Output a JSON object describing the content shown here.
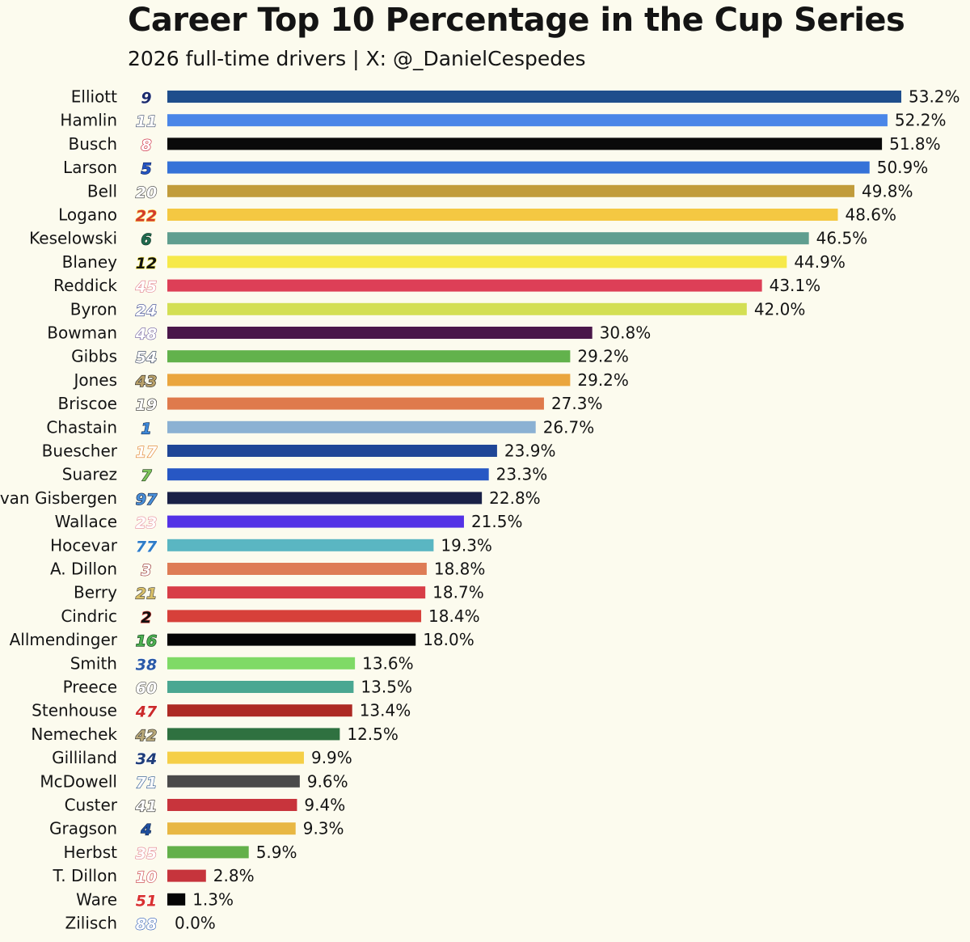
{
  "chart_data": {
    "type": "bar",
    "orientation": "horizontal",
    "title": "Career Top 10 Percentage in the Cup Series",
    "subtitle": "2026 full-time drivers | X: @_DanielCespedes",
    "xlabel": "",
    "ylabel": "",
    "xlim": [
      0,
      53.2
    ],
    "grid": false,
    "legend": "none",
    "value_suffix": "%",
    "bars": [
      {
        "driver": "Elliott",
        "number": "9",
        "value": 53.2,
        "label": "53.2%",
        "color": "#1f4e8c",
        "num_fill": "#1a2a6c",
        "num_stroke": "#ffffff"
      },
      {
        "driver": "Hamlin",
        "number": "11",
        "value": 52.2,
        "label": "52.2%",
        "color": "#4a86e8",
        "num_fill": "#ffffff",
        "num_stroke": "#3b4a6b"
      },
      {
        "driver": "Busch",
        "number": "8",
        "value": 51.8,
        "label": "51.8%",
        "color": "#0a0a0a",
        "num_fill": "#ffffff",
        "num_stroke": "#c8102e"
      },
      {
        "driver": "Larson",
        "number": "5",
        "value": 50.9,
        "label": "50.9%",
        "color": "#3572d8",
        "num_fill": "#2455c3",
        "num_stroke": "#0b1f5c"
      },
      {
        "driver": "Bell",
        "number": "20",
        "value": 49.8,
        "label": "49.8%",
        "color": "#c19c3b",
        "num_fill": "#ffffff",
        "num_stroke": "#3a3a3a"
      },
      {
        "driver": "Logano",
        "number": "22",
        "value": 48.6,
        "label": "48.6%",
        "color": "#f4c842",
        "num_fill": "#d23a2e",
        "num_stroke": "#ffd24a"
      },
      {
        "driver": "Keselowski",
        "number": "6",
        "value": 46.5,
        "label": "46.5%",
        "color": "#5f9e8f",
        "num_fill": "#1f6b4f",
        "num_stroke": "#0e2f24"
      },
      {
        "driver": "Blaney",
        "number": "12",
        "value": 44.9,
        "label": "44.9%",
        "color": "#f6e94a",
        "num_fill": "#111111",
        "num_stroke": "#f6e94a"
      },
      {
        "driver": "Reddick",
        "number": "45",
        "value": 43.1,
        "label": "43.1%",
        "color": "#dd3f57",
        "num_fill": "#ffffff",
        "num_stroke": "#e07a8a"
      },
      {
        "driver": "Byron",
        "number": "24",
        "value": 42.0,
        "label": "42.0%",
        "color": "#d3df54",
        "num_fill": "#ffffff",
        "num_stroke": "#2b3a8a"
      },
      {
        "driver": "Bowman",
        "number": "48",
        "value": 30.8,
        "label": "30.8%",
        "color": "#4a174a",
        "num_fill": "#ffffff",
        "num_stroke": "#6b5a9e"
      },
      {
        "driver": "Gibbs",
        "number": "54",
        "value": 29.2,
        "label": "29.2%",
        "color": "#62b24c",
        "num_fill": "#ffffff",
        "num_stroke": "#1c2a4a"
      },
      {
        "driver": "Jones",
        "number": "43",
        "value": 29.2,
        "label": "29.2%",
        "color": "#eaa63e",
        "num_fill": "#b8a069",
        "num_stroke": "#1c1c1c"
      },
      {
        "driver": "Briscoe",
        "number": "19",
        "value": 27.3,
        "label": "27.3%",
        "color": "#df7a4c",
        "num_fill": "#ffffff",
        "num_stroke": "#222222"
      },
      {
        "driver": "Chastain",
        "number": "1",
        "value": 26.7,
        "label": "26.7%",
        "color": "#8bb1d3",
        "num_fill": "#3d88d8",
        "num_stroke": "#0d2a55"
      },
      {
        "driver": "Buescher",
        "number": "17",
        "value": 23.9,
        "label": "23.9%",
        "color": "#1f4697",
        "num_fill": "#ffffff",
        "num_stroke": "#e07a1f"
      },
      {
        "driver": "Suarez",
        "number": "7",
        "value": 23.3,
        "label": "23.3%",
        "color": "#2757c4",
        "num_fill": "#7cc35a",
        "num_stroke": "#1f3a1a"
      },
      {
        "driver": "van Gisbergen",
        "number": "97",
        "value": 22.8,
        "label": "22.8%",
        "color": "#1a2147",
        "num_fill": "#4a90d9",
        "num_stroke": "#0d1a3a"
      },
      {
        "driver": "Wallace",
        "number": "23",
        "value": 21.5,
        "label": "21.5%",
        "color": "#5432e6",
        "num_fill": "#ffffff",
        "num_stroke": "#e58a9a"
      },
      {
        "driver": "Hocevar",
        "number": "77",
        "value": 19.3,
        "label": "19.3%",
        "color": "#5ab6c2",
        "num_fill": "#2e7cc8",
        "num_stroke": "#ffffff"
      },
      {
        "driver": "A. Dillon",
        "number": "3",
        "value": 18.8,
        "label": "18.8%",
        "color": "#de7c55",
        "num_fill": "#ffffff",
        "num_stroke": "#8a1a1a"
      },
      {
        "driver": "Berry",
        "number": "21",
        "value": 18.7,
        "label": "18.7%",
        "color": "#d83d47",
        "num_fill": "#d9c068",
        "num_stroke": "#3a3a3a"
      },
      {
        "driver": "Cindric",
        "number": "2",
        "value": 18.4,
        "label": "18.4%",
        "color": "#d7403a",
        "num_fill": "#111111",
        "num_stroke": "#d7403a"
      },
      {
        "driver": "Allmendinger",
        "number": "16",
        "value": 18.0,
        "label": "18.0%",
        "color": "#050505",
        "num_fill": "#4caf50",
        "num_stroke": "#0f3d1a"
      },
      {
        "driver": "Smith",
        "number": "38",
        "value": 13.6,
        "label": "13.6%",
        "color": "#7fda66",
        "num_fill": "#2b5aa8",
        "num_stroke": "#ffffff"
      },
      {
        "driver": "Preece",
        "number": "60",
        "value": 13.5,
        "label": "13.5%",
        "color": "#4aa792",
        "num_fill": "#ffffff",
        "num_stroke": "#444444"
      },
      {
        "driver": "Stenhouse",
        "number": "47",
        "value": 13.4,
        "label": "13.4%",
        "color": "#ad2a24",
        "num_fill": "#cc2b2b",
        "num_stroke": "#ffffff"
      },
      {
        "driver": "Nemechek",
        "number": "42",
        "value": 12.5,
        "label": "12.5%",
        "color": "#2f7140",
        "num_fill": "#b8a878",
        "num_stroke": "#2a2a2a"
      },
      {
        "driver": "Gilliland",
        "number": "34",
        "value": 9.9,
        "label": "9.9%",
        "color": "#f5cf47",
        "num_fill": "#1f3d7a",
        "num_stroke": "#ffffff"
      },
      {
        "driver": "McDowell",
        "number": "71",
        "value": 9.6,
        "label": "9.6%",
        "color": "#4a4a4a",
        "num_fill": "#ffffff",
        "num_stroke": "#1f4e8c"
      },
      {
        "driver": "Custer",
        "number": "41",
        "value": 9.4,
        "label": "9.4%",
        "color": "#c8343c",
        "num_fill": "#ffffff",
        "num_stroke": "#222222"
      },
      {
        "driver": "Gragson",
        "number": "4",
        "value": 9.3,
        "label": "9.3%",
        "color": "#e8b743",
        "num_fill": "#1f4f9e",
        "num_stroke": "#0b2149"
      },
      {
        "driver": "Herbst",
        "number": "35",
        "value": 5.9,
        "label": "5.9%",
        "color": "#63b04a",
        "num_fill": "#ffffff",
        "num_stroke": "#e07a8a"
      },
      {
        "driver": "T. Dillon",
        "number": "10",
        "value": 2.8,
        "label": "2.8%",
        "color": "#c6343c",
        "num_fill": "#ffffff",
        "num_stroke": "#c6343c"
      },
      {
        "driver": "Ware",
        "number": "51",
        "value": 1.3,
        "label": "1.3%",
        "color": "#050505",
        "num_fill": "#d93030",
        "num_stroke": "#ffffff"
      },
      {
        "driver": "Zilisch",
        "number": "88",
        "value": 0.0,
        "label": "0.0%",
        "color": "#2a5ab8",
        "num_fill": "#ffffff",
        "num_stroke": "#2a5ab8"
      }
    ]
  }
}
